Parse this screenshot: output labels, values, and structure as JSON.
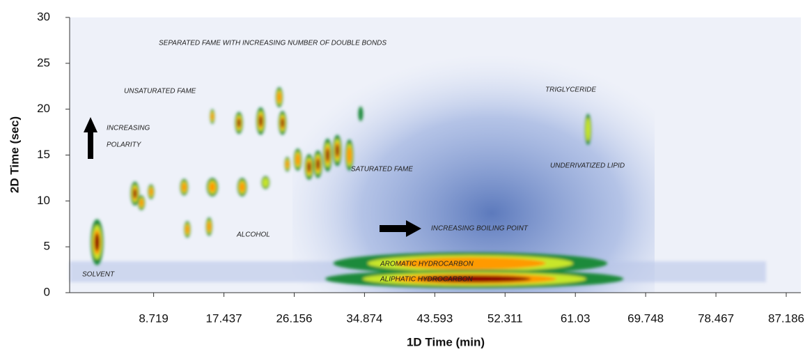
{
  "chart_data": {
    "type": "heatmap",
    "x_label": "1D Time (min)",
    "y_label": "2D Time (sec)",
    "xlim": [
      -1.7,
      89
    ],
    "ylim": [
      0,
      30
    ],
    "xticks": [
      8.719,
      17.437,
      26.156,
      34.874,
      43.593,
      52.311,
      61.03,
      69.748,
      78.467,
      87.186
    ],
    "yticks": [
      0,
      5,
      10,
      15,
      20,
      25,
      30
    ],
    "annotations": [
      "SEPARATED FAME WITH INCREASING NUMBER OF DOUBLE BONDS",
      "UNSATURATED FAME",
      "INCREASING",
      "POLARITY",
      "TRIGLYCERIDE",
      "SATURATED FAME",
      "UNDERIVATIZED LIPID",
      "INCREASING BOILING POINT",
      "ALCOHOL",
      "AROMATIC HYDROCARBON",
      "ALIPHATIC HYDROCARBON",
      "SOLVENT"
    ],
    "peaks": [
      {
        "x": 48,
        "y": 3.2,
        "w": 34,
        "h": 2.4,
        "intensity": 0.6
      },
      {
        "x": 48.5,
        "y": 1.5,
        "w": 37,
        "h": 2,
        "intensity": 1
      },
      {
        "x": 1.7,
        "y": 5.5,
        "w": 1.6,
        "h": 5,
        "intensity": 1
      },
      {
        "x": 6.4,
        "y": 10.8,
        "w": 1.1,
        "h": 2.6,
        "intensity": 1
      },
      {
        "x": 7.2,
        "y": 9.8,
        "w": 0.9,
        "h": 1.6,
        "intensity": 0.6
      },
      {
        "x": 8.4,
        "y": 11,
        "w": 0.8,
        "h": 1.6,
        "intensity": 0.6
      },
      {
        "x": 12.5,
        "y": 11.5,
        "w": 1,
        "h": 1.8,
        "intensity": 0.6
      },
      {
        "x": 16,
        "y": 11.5,
        "w": 1.4,
        "h": 2,
        "intensity": 0.7
      },
      {
        "x": 19.7,
        "y": 11.5,
        "w": 1.2,
        "h": 2,
        "intensity": 0.6
      },
      {
        "x": 22.6,
        "y": 12,
        "w": 1,
        "h": 1.4,
        "intensity": 0.5
      },
      {
        "x": 12.9,
        "y": 6.9,
        "w": 0.8,
        "h": 1.8,
        "intensity": 0.6
      },
      {
        "x": 15.6,
        "y": 7.2,
        "w": 0.8,
        "h": 2,
        "intensity": 0.6
      },
      {
        "x": 16,
        "y": 19.2,
        "w": 0.6,
        "h": 1.6,
        "intensity": 0.6
      },
      {
        "x": 19.3,
        "y": 18.5,
        "w": 1,
        "h": 2.4,
        "intensity": 0.9
      },
      {
        "x": 22,
        "y": 18.7,
        "w": 1.1,
        "h": 3,
        "intensity": 1
      },
      {
        "x": 24.3,
        "y": 21.3,
        "w": 0.9,
        "h": 2.2,
        "intensity": 0.6
      },
      {
        "x": 24.7,
        "y": 18.5,
        "w": 1,
        "h": 2.6,
        "intensity": 1
      },
      {
        "x": 25.3,
        "y": 14,
        "w": 0.7,
        "h": 1.6,
        "intensity": 0.6
      },
      {
        "x": 26.6,
        "y": 14.5,
        "w": 1,
        "h": 2.4,
        "intensity": 0.6
      },
      {
        "x": 28,
        "y": 13.7,
        "w": 1.1,
        "h": 2.8,
        "intensity": 0.9
      },
      {
        "x": 29.1,
        "y": 14,
        "w": 1.1,
        "h": 3,
        "intensity": 0.9
      },
      {
        "x": 30.3,
        "y": 15,
        "w": 1.1,
        "h": 3.6,
        "intensity": 1
      },
      {
        "x": 31.5,
        "y": 15.5,
        "w": 1.1,
        "h": 3.4,
        "intensity": 0.9
      },
      {
        "x": 33,
        "y": 15,
        "w": 1,
        "h": 3.4,
        "intensity": 0.6
      },
      {
        "x": 34.4,
        "y": 19.5,
        "w": 0.6,
        "h": 1.6,
        "intensity": 0.4
      },
      {
        "x": 62.6,
        "y": 17.8,
        "w": 0.8,
        "h": 3.4,
        "intensity": 0.5
      }
    ]
  }
}
